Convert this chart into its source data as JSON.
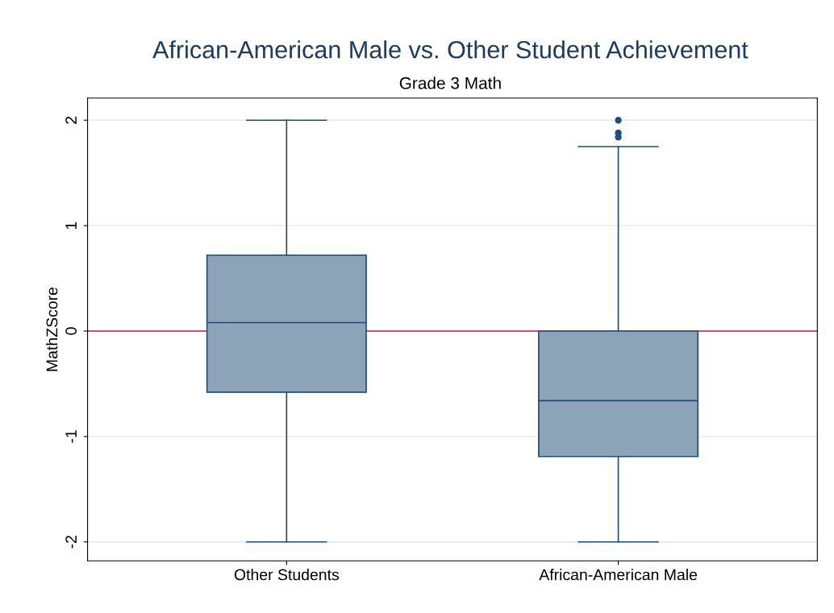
{
  "chart_data": {
    "type": "box",
    "title": "African-American Male vs. Other Student Achievement",
    "subtitle": "Grade 3 Math",
    "ylabel": "MathZScore",
    "categories": [
      "Other Students",
      "African-American Male"
    ],
    "boxes": [
      {
        "low": -2,
        "q1": -0.58,
        "median": 0.08,
        "q3": 0.72,
        "high": 2
      },
      {
        "low": -2,
        "q1": -1.19,
        "median": -0.66,
        "q3": 0,
        "high": 1.75,
        "outliers": [
          1.84,
          1.88,
          2
        ]
      }
    ],
    "color": "#8ca3b8",
    "ylim": [
      -2.18,
      2.21
    ],
    "yticks": [
      -2,
      -1,
      0,
      1,
      2
    ],
    "grid": "y",
    "ref_lines": [
      {
        "axis": "y",
        "value": 0,
        "color": "#c0204a"
      }
    ]
  }
}
